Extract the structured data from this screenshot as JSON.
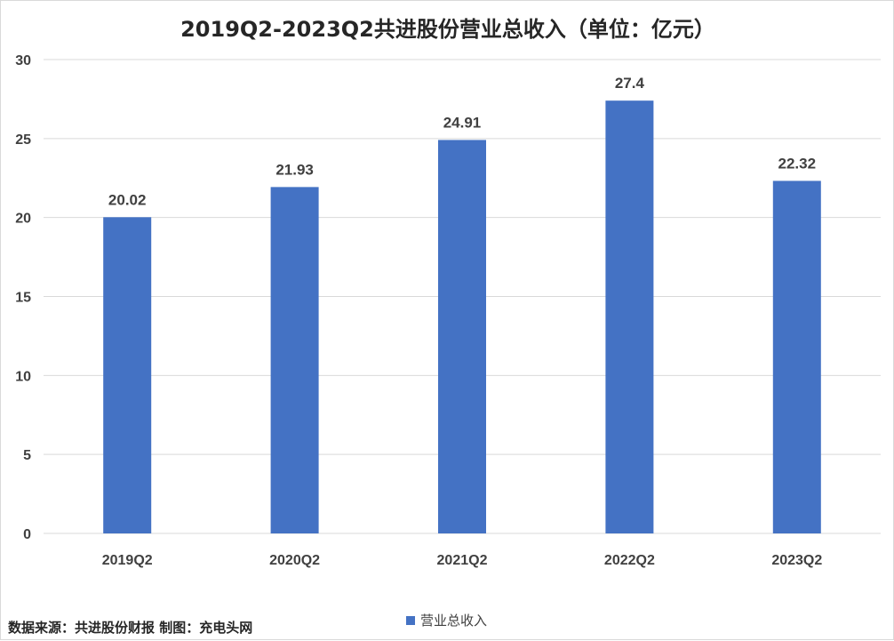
{
  "chart_data": {
    "type": "bar",
    "title": "2019Q2-2023Q2共进股份营业总收入（单位：亿元）",
    "categories": [
      "2019Q2",
      "2020Q2",
      "2021Q2",
      "2022Q2",
      "2023Q2"
    ],
    "series": [
      {
        "name": "营业总收入",
        "values": [
          20.02,
          21.93,
          24.91,
          27.4,
          22.32
        ],
        "color": "#4472c4"
      }
    ],
    "data_labels": [
      "20.02",
      "21.93",
      "24.91",
      "27.4",
      "22.32"
    ],
    "ylim": [
      0,
      30
    ],
    "yticks": [
      0,
      5,
      10,
      15,
      20,
      25,
      30
    ],
    "grid": true,
    "legend_position": "bottom"
  },
  "footer": {
    "source": "数据来源：共进股份财报 制图：充电头网"
  },
  "colors": {
    "bar": "#4472c4",
    "grid": "#d9d9d9",
    "text": "#404040"
  }
}
